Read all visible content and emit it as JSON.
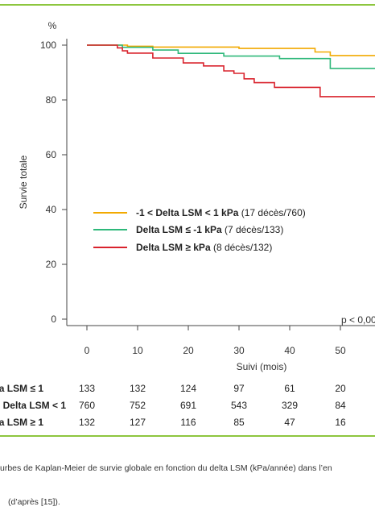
{
  "chart_data": {
    "type": "line",
    "subtype": "kaplan-meier step",
    "title": "",
    "xlabel": "Suivi (mois)",
    "ylabel": "Survie totale",
    "yunit": "%",
    "xlim": [
      0,
      60
    ],
    "ylim": [
      0,
      100
    ],
    "xticks": [
      0,
      10,
      20,
      30,
      40,
      50
    ],
    "yticks": [
      0,
      20,
      40,
      60,
      80,
      100
    ],
    "grid": false,
    "legend_position": "center-left",
    "annotation": "p < 0,00",
    "series": [
      {
        "name": "-1 < Delta LSM < 1 kPa",
        "legend_bold": "-1 < Delta LSM < 1 kPa",
        "legend_rest": " (17 décès/760)",
        "color": "#f2a900",
        "points": [
          [
            0,
            100
          ],
          [
            8,
            100
          ],
          [
            8,
            99.6
          ],
          [
            13,
            99.6
          ],
          [
            13,
            99.3
          ],
          [
            30,
            99.3
          ],
          [
            30,
            98.8
          ],
          [
            45,
            98.8
          ],
          [
            45,
            97.5
          ],
          [
            48,
            97.5
          ],
          [
            48,
            96.2
          ],
          [
            60,
            96.2
          ]
        ]
      },
      {
        "name": "Delta LSM ≤ -1 kPa",
        "legend_bold": "Delta LSM ≤ -1 kPa",
        "legend_rest": " (7 décès/133)",
        "color": "#2eb87a",
        "points": [
          [
            0,
            100
          ],
          [
            7,
            100
          ],
          [
            7,
            99.2
          ],
          [
            13,
            99.2
          ],
          [
            13,
            98.2
          ],
          [
            18,
            98.2
          ],
          [
            18,
            97
          ],
          [
            27,
            97
          ],
          [
            27,
            96
          ],
          [
            38,
            96
          ],
          [
            38,
            95.1
          ],
          [
            48,
            95.1
          ],
          [
            48,
            91.5
          ],
          [
            60,
            91.5
          ]
        ]
      },
      {
        "name": "Delta LSM ≥ kPa",
        "legend_bold": "Delta LSM ≥ kPa",
        "legend_rest": " (8 décès/132)",
        "color": "#d9232d",
        "points": [
          [
            0,
            100
          ],
          [
            6,
            100
          ],
          [
            6,
            99
          ],
          [
            7,
            99
          ],
          [
            7,
            97.9
          ],
          [
            8,
            97.9
          ],
          [
            8,
            97.1
          ],
          [
            13,
            97.1
          ],
          [
            13,
            95.3
          ],
          [
            19,
            95.3
          ],
          [
            19,
            93.5
          ],
          [
            23,
            93.5
          ],
          [
            23,
            92.4
          ],
          [
            27,
            92.4
          ],
          [
            27,
            90.6
          ],
          [
            29,
            90.6
          ],
          [
            29,
            89.7
          ],
          [
            31,
            89.7
          ],
          [
            31,
            87.7
          ],
          [
            33,
            87.7
          ],
          [
            33,
            86.3
          ],
          [
            37,
            86.3
          ],
          [
            37,
            84.6
          ],
          [
            46,
            84.6
          ],
          [
            46,
            81.2
          ],
          [
            60,
            81.2
          ]
        ]
      }
    ]
  },
  "risk_table": {
    "rows": [
      {
        "label": "a LSM ≤ 1",
        "values": [
          "133",
          "132",
          "124",
          "97",
          "61",
          "20"
        ]
      },
      {
        "label": "Delta LSM < 1",
        "values": [
          "760",
          "752",
          "691",
          "543",
          "329",
          "84"
        ]
      },
      {
        "label": "a LSM ≥ 1",
        "values": [
          "132",
          "127",
          "116",
          "85",
          "47",
          "16"
        ]
      }
    ]
  },
  "caption": {
    "line1": "urbes de Kaplan-Meier de survie globale en fonction du delta LSM (kPa/année) dans l’en",
    "line2": "(d’après [15])."
  }
}
